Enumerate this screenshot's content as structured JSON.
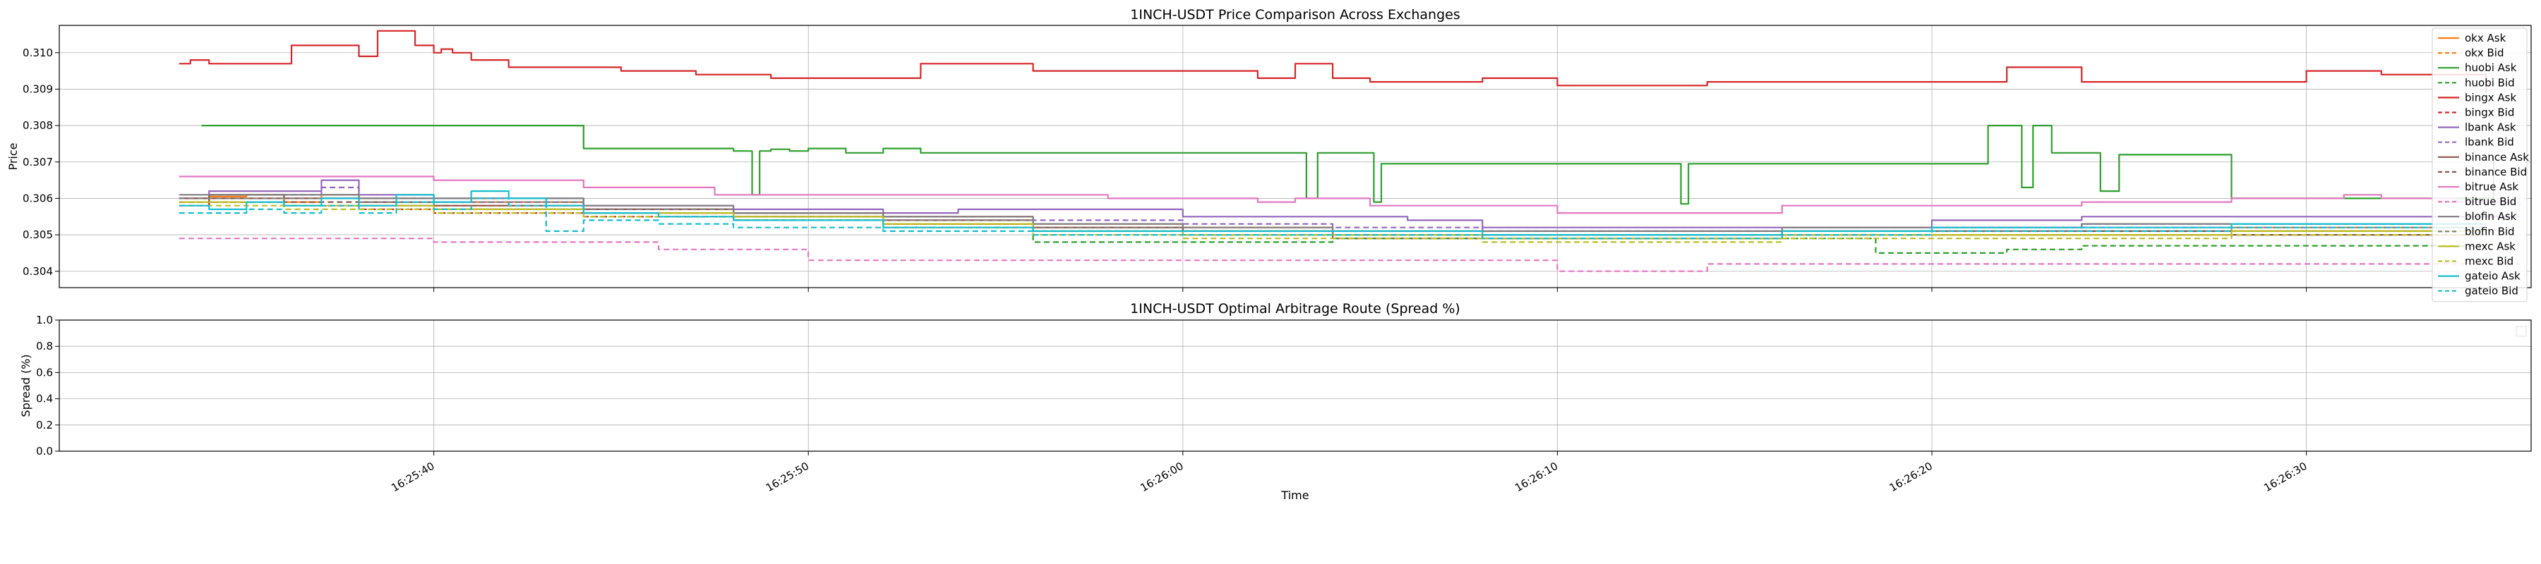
{
  "chart_data": [
    {
      "type": "line",
      "title": "1INCH-USDT Price Comparison Across Exchanges",
      "xlabel": "",
      "ylabel": "Price",
      "xlim_seconds": [
        30.0,
        96.0
      ],
      "ylim": [
        0.30355,
        0.31075
      ],
      "yticks": [
        0.304,
        0.305,
        0.306,
        0.307,
        0.308,
        0.309,
        0.31
      ],
      "ytick_labels": [
        "0.304",
        "0.305",
        "0.306",
        "0.307",
        "0.308",
        "0.309",
        "0.310"
      ],
      "grid": true,
      "legend_position": "upper right",
      "series": [
        {
          "name": "okx Ask",
          "color": "#ff7f0e",
          "dash": false,
          "x": [
            33.2,
            34,
            35,
            36,
            37,
            38,
            40,
            44,
            48,
            52,
            56,
            60,
            64,
            68,
            72,
            76,
            80,
            84,
            88,
            92,
            94.8
          ],
          "y": [
            0.306,
            0.30605,
            0.3061,
            0.3059,
            0.3061,
            0.306,
            0.3059,
            0.3057,
            0.3056,
            0.3055,
            0.3053,
            0.3052,
            0.3051,
            0.305,
            0.305,
            0.3051,
            0.3051,
            0.3051,
            0.3052,
            0.3052,
            0.3052
          ]
        },
        {
          "name": "okx Bid",
          "color": "#ff7f0e",
          "dash": true,
          "x": [
            33.2,
            34,
            36,
            38,
            40,
            44,
            48,
            52,
            56,
            60,
            64,
            68,
            72,
            76,
            80,
            84,
            88,
            92,
            94.8
          ],
          "y": [
            0.3059,
            0.306,
            0.306,
            0.3059,
            0.3058,
            0.3056,
            0.3055,
            0.3053,
            0.3052,
            0.3051,
            0.305,
            0.3049,
            0.3049,
            0.305,
            0.305,
            0.305,
            0.3051,
            0.3051,
            0.3051
          ]
        },
        {
          "name": "huobi Ask",
          "color": "#2ca02c",
          "dash": false,
          "x": [
            33.8,
            44,
            46.5,
            48,
            48.5,
            48.7,
            49,
            49.5,
            50,
            51,
            52,
            53,
            55,
            60,
            63,
            63.3,
            63.6,
            65,
            65.1,
            65.3,
            66,
            70,
            73.3,
            73.5,
            78,
            80,
            81.5,
            82.1,
            82.4,
            82.7,
            83.2,
            84,
            84.5,
            85,
            86,
            88,
            94,
            95
          ],
          "y": [
            0.308,
            0.30737,
            0.30737,
            0.3073,
            0.3061,
            0.3073,
            0.30735,
            0.3073,
            0.30737,
            0.30725,
            0.30737,
            0.30725,
            0.30725,
            0.30725,
            0.30725,
            0.306,
            0.30725,
            0.30725,
            0.3059,
            0.30695,
            0.30695,
            0.30695,
            0.30585,
            0.30695,
            0.30695,
            0.30695,
            0.308,
            0.308,
            0.3063,
            0.308,
            0.30725,
            0.30725,
            0.3062,
            0.3072,
            0.3072,
            0.306,
            0.306,
            0.3072
          ]
        },
        {
          "name": "huobi Bid",
          "color": "#2ca02c",
          "dash": true,
          "x": [
            33.2,
            34,
            36,
            40,
            44,
            48,
            52,
            56,
            60,
            64,
            68,
            72,
            75,
            78,
            78.5,
            82,
            84,
            88,
            92,
            94.8
          ],
          "y": [
            0.3058,
            0.3059,
            0.3058,
            0.3057,
            0.3056,
            0.3054,
            0.3052,
            0.3048,
            0.3048,
            0.3049,
            0.3049,
            0.3049,
            0.3049,
            0.3049,
            0.3045,
            0.3046,
            0.3047,
            0.3047,
            0.3047,
            0.3048
          ]
        },
        {
          "name": "bingx Ask",
          "color": "#d62728",
          "dash": false,
          "x": [
            33.2,
            33.5,
            34,
            36,
            36.2,
            37,
            38,
            38.5,
            39.5,
            40,
            40.2,
            40.5,
            41,
            42,
            43,
            45,
            47,
            49,
            53,
            56,
            60,
            62,
            63,
            64,
            65,
            67,
            68,
            70,
            72,
            74,
            77,
            79,
            82,
            84,
            86,
            90,
            92,
            94,
            94.8
          ],
          "y": [
            0.3097,
            0.3098,
            0.3097,
            0.3097,
            0.3102,
            0.3102,
            0.3099,
            0.3106,
            0.3102,
            0.31,
            0.3101,
            0.31,
            0.3098,
            0.3096,
            0.3096,
            0.3095,
            0.3094,
            0.3093,
            0.3097,
            0.3095,
            0.3095,
            0.3093,
            0.3097,
            0.3093,
            0.3092,
            0.3092,
            0.3093,
            0.3091,
            0.3091,
            0.3092,
            0.3092,
            0.3092,
            0.3096,
            0.3092,
            0.3092,
            0.3095,
            0.3094,
            0.3094,
            0.3089
          ]
        },
        {
          "name": "bingx Bid",
          "color": "#d62728",
          "dash": true,
          "x": [
            33.2,
            34,
            36,
            38,
            40,
            44,
            48,
            52,
            56,
            60,
            64,
            68,
            72,
            76,
            80,
            84,
            88,
            92,
            94.8
          ],
          "y": [
            0.3058,
            0.3059,
            0.3058,
            0.3057,
            0.3056,
            0.3055,
            0.3054,
            0.3053,
            0.3052,
            0.3051,
            0.305,
            0.3049,
            0.3049,
            0.305,
            0.305,
            0.305,
            0.305,
            0.305,
            0.305
          ]
        },
        {
          "name": "lbank Ask",
          "color": "#9467bd",
          "dash": false,
          "x": [
            33.2,
            34,
            35,
            36,
            37,
            38,
            40,
            44,
            48,
            50,
            52,
            54,
            56,
            60,
            64,
            66,
            68,
            72,
            76,
            80,
            84,
            88,
            92,
            95.7
          ],
          "y": [
            0.306,
            0.3062,
            0.3062,
            0.3062,
            0.3065,
            0.3061,
            0.306,
            0.3058,
            0.3057,
            0.3057,
            0.3056,
            0.3057,
            0.3057,
            0.3055,
            0.3055,
            0.3054,
            0.3052,
            0.3052,
            0.3052,
            0.3054,
            0.3055,
            0.3055,
            0.3055,
            0.3055
          ]
        },
        {
          "name": "lbank Bid",
          "color": "#9467bd",
          "dash": true,
          "x": [
            33.2,
            34,
            35,
            36,
            37,
            38,
            40,
            44,
            48,
            52,
            56,
            60,
            64,
            68,
            72,
            76,
            80,
            84,
            88,
            92,
            94.8
          ],
          "y": [
            0.3059,
            0.3061,
            0.3061,
            0.3061,
            0.3063,
            0.306,
            0.3059,
            0.3057,
            0.3056,
            0.3055,
            0.3054,
            0.3053,
            0.3052,
            0.3051,
            0.3051,
            0.3051,
            0.3052,
            0.3053,
            0.3053,
            0.3053,
            0.3053
          ]
        },
        {
          "name": "binance Ask",
          "color": "#8c564b",
          "dash": false,
          "x": [
            33.2,
            34,
            36,
            38,
            40,
            44,
            48,
            52,
            56,
            60,
            64,
            68,
            72,
            76,
            80,
            84,
            88,
            92,
            94.8
          ],
          "y": [
            0.306,
            0.3061,
            0.306,
            0.3059,
            0.3058,
            0.3057,
            0.3056,
            0.3054,
            0.3052,
            0.3051,
            0.305,
            0.305,
            0.305,
            0.3051,
            0.3051,
            0.3051,
            0.3051,
            0.3051,
            0.3051
          ]
        },
        {
          "name": "binance Bid",
          "color": "#8c564b",
          "dash": true,
          "x": [
            33.2,
            34,
            36,
            38,
            40,
            44,
            48,
            52,
            56,
            60,
            64,
            68,
            72,
            76,
            80,
            84,
            88,
            92,
            94.8
          ],
          "y": [
            0.3059,
            0.306,
            0.3059,
            0.3058,
            0.3057,
            0.3056,
            0.3055,
            0.3053,
            0.3051,
            0.305,
            0.3049,
            0.3049,
            0.3049,
            0.305,
            0.305,
            0.305,
            0.305,
            0.305,
            0.305
          ]
        },
        {
          "name": "bitrue Ask",
          "color": "#e377c2",
          "dash": false,
          "x": [
            33.2,
            36,
            40,
            44,
            46,
            47.5,
            50,
            54,
            58,
            62,
            63,
            65,
            68,
            70,
            72,
            74,
            76,
            80,
            84,
            88,
            91,
            92,
            94,
            95.7
          ],
          "y": [
            0.3066,
            0.3066,
            0.3065,
            0.3063,
            0.3063,
            0.3061,
            0.3061,
            0.3061,
            0.306,
            0.3059,
            0.306,
            0.3058,
            0.3058,
            0.3056,
            0.3056,
            0.3056,
            0.3058,
            0.3058,
            0.3059,
            0.306,
            0.3061,
            0.306,
            0.3059,
            0.3058
          ]
        },
        {
          "name": "bitrue Bid",
          "color": "#e377c2",
          "dash": true,
          "x": [
            33.2,
            36,
            40,
            44,
            46,
            48,
            50,
            52,
            56,
            60,
            64,
            68,
            70,
            72,
            74,
            76,
            80,
            84,
            88,
            92,
            95.7
          ],
          "y": [
            0.3049,
            0.3049,
            0.3048,
            0.3048,
            0.3046,
            0.3046,
            0.3043,
            0.3043,
            0.3043,
            0.3043,
            0.3043,
            0.3043,
            0.304,
            0.304,
            0.3042,
            0.3042,
            0.3042,
            0.3042,
            0.3042,
            0.3042,
            0.3042
          ]
        },
        {
          "name": "blofin Ask",
          "color": "#7f7f7f",
          "dash": false,
          "x": [
            33.2,
            34,
            36,
            38,
            40,
            44,
            48,
            52,
            56,
            60,
            64,
            68,
            72,
            76,
            80,
            84,
            88,
            92,
            94.8
          ],
          "y": [
            0.3061,
            0.3061,
            0.3061,
            0.306,
            0.306,
            0.3058,
            0.3056,
            0.3055,
            0.3053,
            0.3052,
            0.3051,
            0.3051,
            0.3051,
            0.3052,
            0.3052,
            0.3053,
            0.3053,
            0.3053,
            0.3053
          ]
        },
        {
          "name": "blofin Bid",
          "color": "#7f7f7f",
          "dash": true,
          "x": [
            33.2,
            34,
            36,
            38,
            40,
            44,
            48,
            52,
            56,
            60,
            64,
            68,
            72,
            76,
            80,
            84,
            88,
            92,
            94.8
          ],
          "y": [
            0.306,
            0.306,
            0.306,
            0.3059,
            0.3059,
            0.3057,
            0.3055,
            0.3054,
            0.3052,
            0.3051,
            0.305,
            0.305,
            0.305,
            0.3051,
            0.3051,
            0.3052,
            0.3052,
            0.3052,
            0.3052
          ]
        },
        {
          "name": "mexc Ask",
          "color": "#bcbd22",
          "dash": false,
          "x": [
            33.2,
            34,
            36,
            38,
            40,
            44,
            48,
            52,
            56,
            60,
            64,
            68,
            72,
            76,
            80,
            84,
            88,
            92,
            94.8
          ],
          "y": [
            0.3059,
            0.3059,
            0.3058,
            0.3058,
            0.3057,
            0.3056,
            0.3055,
            0.3053,
            0.3051,
            0.305,
            0.305,
            0.3049,
            0.3049,
            0.305,
            0.305,
            0.305,
            0.3051,
            0.3051,
            0.3051
          ]
        },
        {
          "name": "mexc Bid",
          "color": "#bcbd22",
          "dash": true,
          "x": [
            33.2,
            34,
            36,
            38,
            40,
            44,
            48,
            52,
            56,
            60,
            64,
            68,
            72,
            76,
            80,
            84,
            88,
            92,
            94.8
          ],
          "y": [
            0.3058,
            0.3058,
            0.3057,
            0.3057,
            0.3056,
            0.3055,
            0.3054,
            0.3052,
            0.305,
            0.3049,
            0.3049,
            0.3048,
            0.3048,
            0.3049,
            0.3049,
            0.3049,
            0.305,
            0.305,
            0.305
          ]
        },
        {
          "name": "gateio Ask",
          "color": "#17becf",
          "dash": false,
          "x": [
            33.2,
            34,
            35,
            36,
            37,
            38,
            39,
            40,
            41,
            42,
            43,
            44,
            46,
            48,
            52,
            56,
            60,
            64,
            68,
            72,
            76,
            80,
            84,
            88,
            92,
            94.8
          ],
          "y": [
            0.3058,
            0.3057,
            0.3059,
            0.3058,
            0.306,
            0.3058,
            0.3061,
            0.3059,
            0.3062,
            0.306,
            0.3058,
            0.3056,
            0.3055,
            0.3054,
            0.3052,
            0.3051,
            0.3051,
            0.3051,
            0.305,
            0.305,
            0.3051,
            0.3052,
            0.3052,
            0.3053,
            0.3053,
            0.3053
          ]
        },
        {
          "name": "gateio Bid",
          "color": "#17becf",
          "dash": true,
          "x": [
            33.2,
            34,
            35,
            36,
            37,
            38,
            39,
            40,
            41,
            42,
            43,
            44,
            46,
            48,
            52,
            56,
            60,
            64,
            68,
            72,
            76,
            80,
            84,
            88,
            92,
            94.8
          ],
          "y": [
            0.3056,
            0.3056,
            0.3057,
            0.3056,
            0.3058,
            0.3056,
            0.3059,
            0.3057,
            0.306,
            0.3058,
            0.3051,
            0.3054,
            0.3053,
            0.3052,
            0.3051,
            0.305,
            0.305,
            0.305,
            0.3049,
            0.3049,
            0.305,
            0.3051,
            0.3051,
            0.3052,
            0.3052,
            0.3052
          ]
        }
      ]
    },
    {
      "type": "line",
      "title": "1INCH-USDT Optimal Arbitrage Route (Spread %)",
      "xlabel": "Time",
      "ylabel": "Spread (%)",
      "xlim_seconds": [
        30.0,
        96.0
      ],
      "ylim": [
        0.0,
        1.0
      ],
      "yticks": [
        0.0,
        0.2,
        0.4,
        0.6,
        0.8,
        1.0
      ],
      "ytick_labels": [
        "0.0",
        "0.2",
        "0.4",
        "0.6",
        "0.8",
        "1.0"
      ],
      "grid": true,
      "legend_position": "upper right",
      "series": [],
      "xticks_seconds": [
        40,
        50,
        60,
        70,
        80,
        90
      ],
      "xtick_labels": [
        "16:25:40",
        "16:25:50",
        "16:26:00",
        "16:26:10",
        "16:26:20",
        "16:26:30"
      ]
    }
  ]
}
